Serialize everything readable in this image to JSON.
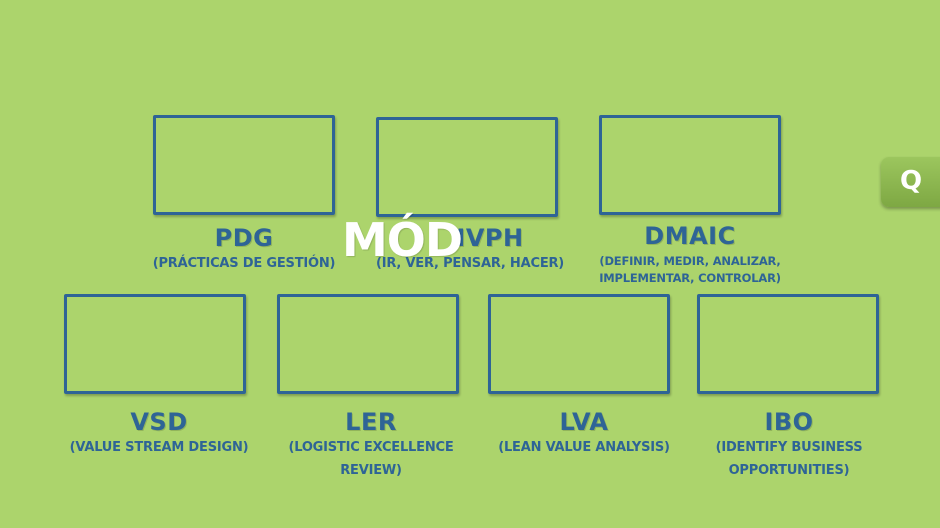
{
  "overlay": {
    "text": "MÓD"
  },
  "side_button": {
    "label": "Q"
  },
  "tools": [
    {
      "title": "PDG",
      "subtitle": "(Prácticas de gestión)"
    },
    {
      "title": "IVPH",
      "subtitle": "(Ir, ver, pensar, hacer)"
    },
    {
      "title": "DMAIC",
      "subtitle_lines": [
        "(Definir, medir, analizar,",
        "implementar, controlar)"
      ]
    },
    {
      "title": "VSD",
      "subtitle": "(Value stream design)"
    },
    {
      "title": "LER",
      "subtitle_lines": [
        "(Logistic excellence",
        "review)"
      ]
    },
    {
      "title": "LVA",
      "subtitle": "(Lean value analysis)"
    },
    {
      "title": "IBO",
      "subtitle_lines": [
        "(Identify business",
        "opportunities)"
      ]
    }
  ]
}
